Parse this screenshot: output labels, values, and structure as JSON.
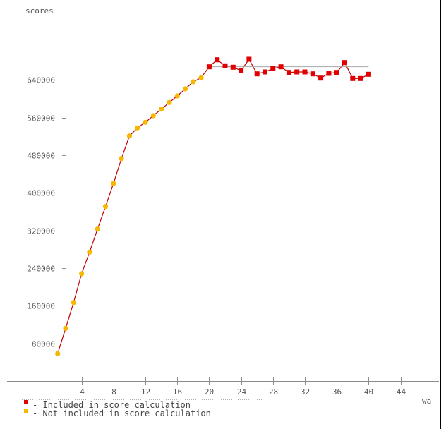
{
  "chart_data": {
    "type": "line",
    "ylabel": "scores",
    "xlabel": "wa",
    "xlim": [
      -3,
      46
    ],
    "ylim": [
      0,
      720000
    ],
    "x_ticks": [
      4,
      8,
      12,
      16,
      20,
      24,
      28,
      32,
      36,
      40,
      44
    ],
    "x_tick_labels": [
      "4",
      "8",
      "12",
      "16",
      "20",
      "24",
      "28",
      "32",
      "36",
      "40",
      "44"
    ],
    "y_ticks": [
      80000,
      160000,
      240000,
      320000,
      400000,
      480000,
      560000,
      640000
    ],
    "y_tick_labels": [
      "80000",
      "160000",
      "240000",
      "320000",
      "400000",
      "480000",
      "560000",
      "640000"
    ],
    "grid": false,
    "series": [
      {
        "name": "Not included in score calculation",
        "color": "#f5b800",
        "marker": "circle",
        "x": [
          1,
          2,
          3,
          4,
          5,
          6,
          7,
          8,
          9,
          10,
          11,
          12,
          13,
          14,
          15,
          16,
          17,
          18,
          19
        ],
        "y": [
          58000,
          112000,
          167000,
          228000,
          274000,
          323000,
          371000,
          420000,
          473000,
          521000,
          538000,
          550000,
          564000,
          578000,
          592000,
          606000,
          621000,
          636000,
          645000
        ]
      },
      {
        "name": "Included in score calculation",
        "color": "#e00000",
        "marker": "square",
        "x": [
          20,
          21,
          22,
          23,
          24,
          25,
          26,
          27,
          28,
          29,
          30,
          31,
          32,
          33,
          34,
          35,
          36,
          37,
          38,
          39,
          40
        ],
        "y": [
          668000,
          683000,
          670000,
          667000,
          660000,
          684000,
          653000,
          657000,
          664000,
          668000,
          656000,
          657000,
          657000,
          653000,
          644000,
          654000,
          656000,
          677000,
          643000,
          643000,
          652000
        ]
      }
    ],
    "legend_position": "bottom-left",
    "line_color": "#c00000",
    "guide_color": "#a8a8a8",
    "axis_color": "#8c8c8c",
    "legend": [
      {
        "marker_color": "#e00000",
        "label": "- Included in score calculation"
      },
      {
        "marker_color": "#f5b800",
        "label": "- Not included in score calculation"
      }
    ]
  }
}
